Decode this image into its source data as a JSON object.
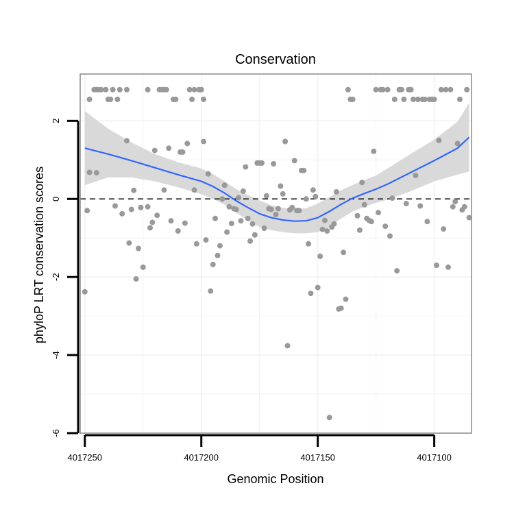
{
  "chart_data": {
    "type": "scatter",
    "title": "Conservation",
    "xlabel": "Genomic Position",
    "ylabel": "phyloP LRT conservation scores",
    "x_reversed": true,
    "xlim": [
      4017252,
      4017084
    ],
    "ylim": [
      -6,
      3.2
    ],
    "x_ticks": [
      4017250,
      4017200,
      4017150,
      4017100
    ],
    "x_tick_labels": [
      "4017250",
      "4017200",
      "4017150",
      "4017100"
    ],
    "y_ticks": [
      -6,
      -4,
      -2,
      0,
      2
    ],
    "y_tick_labels": [
      "-6",
      "-4",
      "-2",
      "0",
      "2"
    ],
    "reference_line": {
      "y": 0,
      "style": "dashed"
    },
    "grid": true,
    "colors": {
      "points": "#999999",
      "smooth": "#3366ff",
      "ribbon": "#d5d5d5",
      "panel_border": "#888888"
    },
    "points": [
      {
        "x": 4017250,
        "y": -2.38
      },
      {
        "x": 4017248,
        "y": 2.55
      },
      {
        "x": 4017249,
        "y": -0.3
      },
      {
        "x": 4017248,
        "y": 0.68
      },
      {
        "x": 4017246,
        "y": 2.8
      },
      {
        "x": 4017245,
        "y": 2.8
      },
      {
        "x": 4017244,
        "y": 2.8
      },
      {
        "x": 4017245,
        "y": 0.67
      },
      {
        "x": 4017243,
        "y": 2.8
      },
      {
        "x": 4017241,
        "y": 2.8
      },
      {
        "x": 4017240,
        "y": 2.55
      },
      {
        "x": 4017239,
        "y": 2.55
      },
      {
        "x": 4017238,
        "y": 2.8
      },
      {
        "x": 4017237,
        "y": -0.18
      },
      {
        "x": 4017236,
        "y": 2.55
      },
      {
        "x": 4017235,
        "y": 2.8
      },
      {
        "x": 4017234,
        "y": -0.38
      },
      {
        "x": 4017232,
        "y": 2.8
      },
      {
        "x": 4017232,
        "y": 1.49
      },
      {
        "x": 4017231,
        "y": -1.13
      },
      {
        "x": 4017230,
        "y": -0.27
      },
      {
        "x": 4017229,
        "y": 0.22
      },
      {
        "x": 4017228,
        "y": -2.05
      },
      {
        "x": 4017227,
        "y": -1.27
      },
      {
        "x": 4017226,
        "y": -0.22
      },
      {
        "x": 4017225,
        "y": -1.75
      },
      {
        "x": 4017223,
        "y": 2.8
      },
      {
        "x": 4017223,
        "y": -0.2
      },
      {
        "x": 4017222,
        "y": -0.74
      },
      {
        "x": 4017221,
        "y": -0.6
      },
      {
        "x": 4017220,
        "y": 1.24
      },
      {
        "x": 4017219,
        "y": -0.42
      },
      {
        "x": 4017218,
        "y": 2.8
      },
      {
        "x": 4017217,
        "y": 2.8
      },
      {
        "x": 4017216,
        "y": 2.8
      },
      {
        "x": 4017216,
        "y": 0.23
      },
      {
        "x": 4017215,
        "y": 2.8
      },
      {
        "x": 4017214,
        "y": 1.3
      },
      {
        "x": 4017213,
        "y": -0.56
      },
      {
        "x": 4017212,
        "y": 2.55
      },
      {
        "x": 4017211,
        "y": 2.55
      },
      {
        "x": 4017210,
        "y": -0.82
      },
      {
        "x": 4017209,
        "y": 1.2
      },
      {
        "x": 4017208,
        "y": 1.2
      },
      {
        "x": 4017207,
        "y": -0.62
      },
      {
        "x": 4017206,
        "y": 1.42
      },
      {
        "x": 4017205,
        "y": 2.8
      },
      {
        "x": 4017204,
        "y": 2.55
      },
      {
        "x": 4017203,
        "y": 2.8
      },
      {
        "x": 4017203,
        "y": 0.23
      },
      {
        "x": 4017202,
        "y": -1.15
      },
      {
        "x": 4017201,
        "y": 2.8
      },
      {
        "x": 4017200,
        "y": 2.8
      },
      {
        "x": 4017199,
        "y": 2.55
      },
      {
        "x": 4017199,
        "y": 1.47
      },
      {
        "x": 4017198,
        "y": -1.05
      },
      {
        "x": 4017197,
        "y": 0.64
      },
      {
        "x": 4017196,
        "y": -2.36
      },
      {
        "x": 4017195,
        "y": -1.68
      },
      {
        "x": 4017194,
        "y": -0.5
      },
      {
        "x": 4017193,
        "y": -1.45
      },
      {
        "x": 4017192,
        "y": -1.2
      },
      {
        "x": 4017191,
        "y": 0.0
      },
      {
        "x": 4017190,
        "y": 0.35
      },
      {
        "x": 4017189,
        "y": -0.85
      },
      {
        "x": 4017188,
        "y": -0.2
      },
      {
        "x": 4017187,
        "y": -0.63
      },
      {
        "x": 4017186,
        "y": -0.25
      },
      {
        "x": 4017185,
        "y": -0.27
      },
      {
        "x": 4017184,
        "y": 0.03
      },
      {
        "x": 4017183,
        "y": -0.56
      },
      {
        "x": 4017182,
        "y": 0.2
      },
      {
        "x": 4017181,
        "y": 0.82
      },
      {
        "x": 4017180,
        "y": -0.5
      },
      {
        "x": 4017179,
        "y": -1.08
      },
      {
        "x": 4017178,
        "y": -0.64
      },
      {
        "x": 4017177,
        "y": -0.92
      },
      {
        "x": 4017176,
        "y": 0.92
      },
      {
        "x": 4017175,
        "y": 0.92
      },
      {
        "x": 4017174,
        "y": 0.92
      },
      {
        "x": 4017173,
        "y": -0.75
      },
      {
        "x": 4017172,
        "y": 0.08
      },
      {
        "x": 4017171,
        "y": -0.25
      },
      {
        "x": 4017170,
        "y": -0.27
      },
      {
        "x": 4017169,
        "y": 0.9
      },
      {
        "x": 4017168,
        "y": -0.4
      },
      {
        "x": 4017167,
        "y": -0.25
      },
      {
        "x": 4017166,
        "y": 0.33
      },
      {
        "x": 4017165,
        "y": 0.13
      },
      {
        "x": 4017164,
        "y": 1.47
      },
      {
        "x": 4017163,
        "y": -3.76
      },
      {
        "x": 4017162,
        "y": -0.28
      },
      {
        "x": 4017161,
        "y": -0.22
      },
      {
        "x": 4017160,
        "y": 0.98
      },
      {
        "x": 4017159,
        "y": -0.3
      },
      {
        "x": 4017158,
        "y": -0.3
      },
      {
        "x": 4017157,
        "y": 0.73
      },
      {
        "x": 4017156,
        "y": 0.73
      },
      {
        "x": 4017155,
        "y": 0.0
      },
      {
        "x": 4017154,
        "y": -1.15
      },
      {
        "x": 4017153,
        "y": -2.42
      },
      {
        "x": 4017152,
        "y": 0.23
      },
      {
        "x": 4017151,
        "y": 0.06
      },
      {
        "x": 4017150,
        "y": -2.27
      },
      {
        "x": 4017149,
        "y": -1.47
      },
      {
        "x": 4017148,
        "y": -0.78
      },
      {
        "x": 4017147,
        "y": -0.55
      },
      {
        "x": 4017146,
        "y": -0.82
      },
      {
        "x": 4017145,
        "y": -5.6
      },
      {
        "x": 4017144,
        "y": -0.72
      },
      {
        "x": 4017143,
        "y": -0.64
      },
      {
        "x": 4017142,
        "y": 0.18
      },
      {
        "x": 4017141,
        "y": -2.82
      },
      {
        "x": 4017140,
        "y": -2.8
      },
      {
        "x": 4017139,
        "y": -1.37
      },
      {
        "x": 4017138,
        "y": -2.57
      },
      {
        "x": 4017137,
        "y": 2.8
      },
      {
        "x": 4017136,
        "y": 2.55
      },
      {
        "x": 4017135,
        "y": 2.55
      },
      {
        "x": 4017133,
        "y": -0.43
      },
      {
        "x": 4017132,
        "y": -0.8
      },
      {
        "x": 4017131,
        "y": 0.42
      },
      {
        "x": 4017130,
        "y": -0.15
      },
      {
        "x": 4017129,
        "y": -0.5
      },
      {
        "x": 4017128,
        "y": -0.55
      },
      {
        "x": 4017127,
        "y": -0.58
      },
      {
        "x": 4017126,
        "y": 1.22
      },
      {
        "x": 4017125,
        "y": 2.8
      },
      {
        "x": 4017124,
        "y": -0.35
      },
      {
        "x": 4017123,
        "y": 2.8
      },
      {
        "x": 4017122,
        "y": 2.8
      },
      {
        "x": 4017121,
        "y": -0.7
      },
      {
        "x": 4017120,
        "y": 2.8
      },
      {
        "x": 4017119,
        "y": -0.95
      },
      {
        "x": 4017118,
        "y": 0.02
      },
      {
        "x": 4017117,
        "y": 2.55
      },
      {
        "x": 4017116,
        "y": -1.84
      },
      {
        "x": 4017115,
        "y": 2.8
      },
      {
        "x": 4017114,
        "y": 2.8
      },
      {
        "x": 4017113,
        "y": 2.55
      },
      {
        "x": 4017112,
        "y": -0.12
      },
      {
        "x": 4017111,
        "y": 2.8
      },
      {
        "x": 4017110,
        "y": 2.8
      },
      {
        "x": 4017109,
        "y": 2.55
      },
      {
        "x": 4017108,
        "y": 0.6
      },
      {
        "x": 4017107,
        "y": 2.55
      },
      {
        "x": 4017106,
        "y": -0.18
      },
      {
        "x": 4017105,
        "y": 2.55
      },
      {
        "x": 4017104,
        "y": 2.55
      },
      {
        "x": 4017103,
        "y": -0.58
      },
      {
        "x": 4017102,
        "y": 2.55
      },
      {
        "x": 4017101,
        "y": 2.55
      },
      {
        "x": 4017100,
        "y": 2.55
      },
      {
        "x": 4017099,
        "y": -1.7
      },
      {
        "x": 4017098,
        "y": 1.5
      },
      {
        "x": 4017097,
        "y": 2.8
      },
      {
        "x": 4017096,
        "y": -0.77
      },
      {
        "x": 4017095,
        "y": 2.8
      },
      {
        "x": 4017094,
        "y": -1.75
      },
      {
        "x": 4017093,
        "y": 2.8
      },
      {
        "x": 4017092,
        "y": -0.2
      },
      {
        "x": 4017091,
        "y": -0.07
      },
      {
        "x": 4017090,
        "y": 1.42
      },
      {
        "x": 4017089,
        "y": 2.55
      },
      {
        "x": 4017088,
        "y": -0.28
      },
      {
        "x": 4017087,
        "y": -0.2
      },
      {
        "x": 4017086,
        "y": 2.8
      },
      {
        "x": 4017085,
        "y": -0.48
      }
    ],
    "smooth": {
      "x": [
        4017250,
        4017240,
        4017230,
        4017220,
        4017210,
        4017200,
        4017195,
        4017190,
        4017185,
        4017180,
        4017175,
        4017170,
        4017165,
        4017160,
        4017155,
        4017150,
        4017145,
        4017140,
        4017135,
        4017130,
        4017125,
        4017120,
        4017110,
        4017100,
        4017090,
        4017085
      ],
      "y": [
        1.3,
        1.15,
        0.98,
        0.8,
        0.62,
        0.45,
        0.32,
        0.15,
        -0.05,
        -0.22,
        -0.38,
        -0.48,
        -0.54,
        -0.57,
        -0.56,
        -0.48,
        -0.32,
        -0.14,
        0.02,
        0.14,
        0.25,
        0.38,
        0.68,
        0.98,
        1.3,
        1.58
      ],
      "ymin": [
        0.35,
        0.55,
        0.55,
        0.45,
        0.3,
        0.12,
        0.0,
        -0.15,
        -0.35,
        -0.55,
        -0.72,
        -0.8,
        -0.85,
        -0.88,
        -0.88,
        -0.85,
        -0.72,
        -0.5,
        -0.32,
        -0.2,
        -0.1,
        -0.02,
        0.2,
        0.45,
        0.62,
        0.7
      ],
      "ymax": [
        2.25,
        1.8,
        1.45,
        1.15,
        0.94,
        0.78,
        0.64,
        0.45,
        0.25,
        0.1,
        -0.04,
        -0.16,
        -0.23,
        -0.26,
        -0.24,
        -0.12,
        0.05,
        0.22,
        0.36,
        0.48,
        0.6,
        0.78,
        1.16,
        1.52,
        1.98,
        2.46
      ]
    }
  }
}
